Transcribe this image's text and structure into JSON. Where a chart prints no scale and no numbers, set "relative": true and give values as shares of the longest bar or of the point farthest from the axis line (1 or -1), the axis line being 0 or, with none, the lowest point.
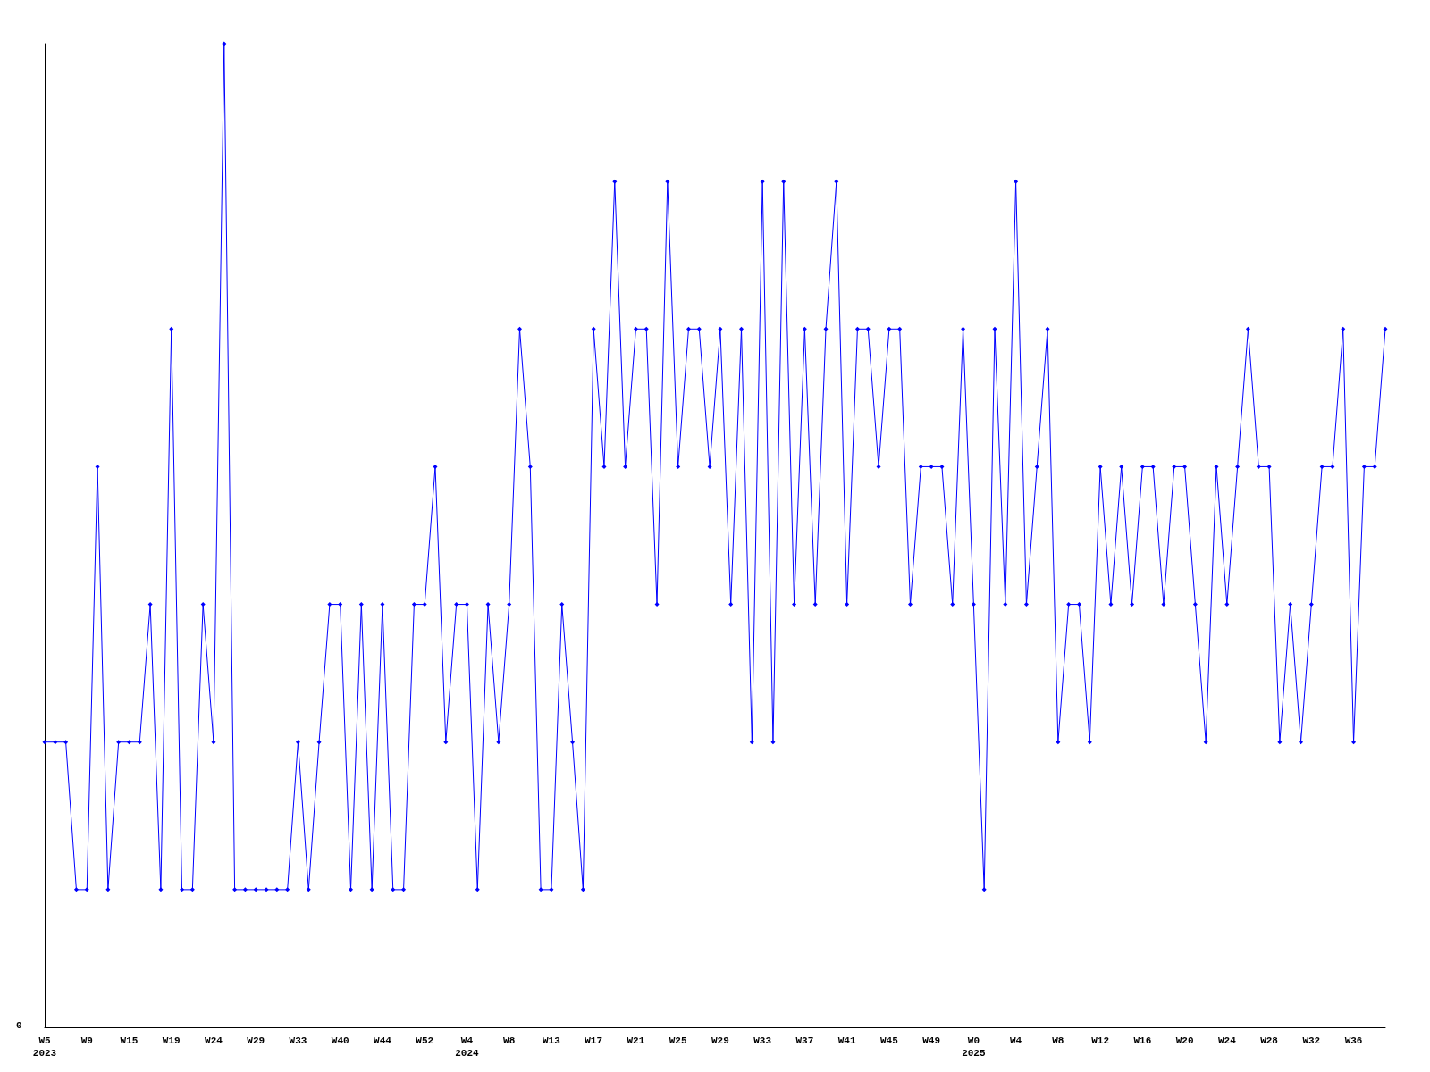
{
  "chart_data": {
    "type": "line",
    "relative": true,
    "marker": "diamond",
    "line_style": "solid",
    "annotations": [
      "0"
    ],
    "categories": [
      "W5\n2023",
      null,
      null,
      null,
      "W9",
      null,
      null,
      null,
      "W15",
      null,
      null,
      null,
      "W19",
      null,
      null,
      null,
      "W24",
      null,
      null,
      null,
      "W29",
      null,
      null,
      null,
      "W33",
      null,
      null,
      null,
      "W40",
      null,
      null,
      null,
      "W44",
      null,
      null,
      null,
      "W52",
      null,
      null,
      null,
      "W4\n2024",
      null,
      null,
      null,
      "W8",
      null,
      null,
      null,
      "W13",
      null,
      null,
      null,
      "W17",
      null,
      null,
      null,
      "W21",
      null,
      null,
      null,
      "W25",
      null,
      null,
      null,
      "W29",
      null,
      null,
      null,
      "W33",
      null,
      null,
      null,
      "W37",
      null,
      null,
      null,
      "W41",
      null,
      null,
      null,
      "W45",
      null,
      null,
      null,
      "W49",
      null,
      null,
      null,
      "W0\n2025",
      null,
      null,
      null,
      "W4",
      null,
      null,
      null,
      "W8",
      null,
      null,
      null,
      "W12",
      null,
      null,
      null,
      "W16",
      null,
      null,
      null,
      "W20",
      null,
      null,
      null,
      "W24",
      null,
      null,
      null,
      "W28",
      null,
      null,
      null,
      "W32",
      null,
      null,
      null,
      "W36",
      null,
      null,
      null
    ],
    "series": [
      {
        "color": "#0000ff",
        "values": [
          0.29,
          0.29,
          0.29,
          0.14,
          0.14,
          0.57,
          0.14,
          0.29,
          0.29,
          0.29,
          0.43,
          0.14,
          0.71,
          0.14,
          0.14,
          0.43,
          0.29,
          1,
          0.14,
          0.14,
          0.14,
          0.14,
          0.14,
          0.14,
          0.29,
          0.14,
          0.29,
          0.43,
          0.43,
          0.14,
          0.43,
          0.14,
          0.43,
          0.14,
          0.14,
          0.43,
          0.43,
          0.57,
          0.29,
          0.43,
          0.43,
          0.14,
          0.43,
          0.29,
          0.43,
          0.71,
          0.57,
          0.14,
          0.14,
          0.43,
          0.29,
          0.14,
          0.71,
          0.57,
          0.86,
          0.57,
          0.71,
          0.71,
          0.43,
          0.86,
          0.57,
          0.71,
          0.71,
          0.57,
          0.71,
          0.43,
          0.71,
          0.29,
          0.86,
          0.29,
          0.86,
          0.43,
          0.71,
          0.43,
          0.71,
          0.86,
          0.43,
          0.71,
          0.71,
          0.57,
          0.71,
          0.71,
          0.43,
          0.57,
          0.57,
          0.57,
          0.43,
          0.71,
          0.43,
          0.14,
          0.71,
          0.43,
          0.86,
          0.43,
          0.57,
          0.71,
          0.29,
          0.43,
          0.43,
          0.29,
          0.57,
          0.43,
          0.57,
          0.43,
          0.57,
          0.57,
          0.43,
          0.57,
          0.57,
          0.43,
          0.29,
          0.57,
          0.43,
          0.57,
          0.71,
          0.57,
          0.57,
          0.29,
          0.43,
          0.29,
          0.43,
          0.57,
          0.57,
          0.71,
          0.29,
          0.57,
          0.57,
          0.71
        ]
      }
    ]
  }
}
